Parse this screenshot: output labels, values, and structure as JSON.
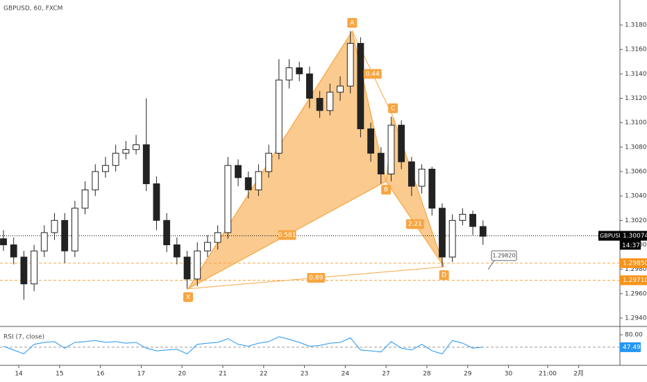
{
  "chart_data": {
    "type": "candlestick",
    "title": "GBPUSD, 60, FXCM",
    "x": [
      -0.375,
      -0.125,
      0.125,
      0.375,
      0.625,
      0.875,
      1.125,
      1.375,
      1.625,
      1.875,
      2.125,
      2.375,
      2.625,
      2.875,
      3.125,
      3.375,
      3.625,
      3.875,
      4.125,
      4.375,
      4.625,
      4.875,
      5.125,
      5.375,
      5.625,
      5.875,
      6.125,
      6.375,
      6.625,
      6.875,
      7.125,
      7.375,
      7.625,
      7.875,
      8.125,
      8.375,
      8.625,
      8.875,
      9.125,
      9.375,
      9.625,
      9.875,
      10.125,
      10.375,
      10.625,
      10.875,
      11.125,
      11.375
    ],
    "open": [
      1.3005,
      1.3,
      1.299,
      1.2968,
      1.2995,
      1.301,
      1.302,
      1.2995,
      1.303,
      1.3045,
      1.306,
      1.3065,
      1.3075,
      1.3078,
      1.3082,
      1.305,
      1.302,
      1.3,
      1.299,
      1.2972,
      1.2995,
      1.3002,
      1.301,
      1.3065,
      1.3055,
      1.3045,
      1.306,
      1.3075,
      1.3135,
      1.3145,
      1.314,
      1.312,
      1.311,
      1.3125,
      1.313,
      1.3165,
      1.3095,
      1.3075,
      1.3058,
      1.3098,
      1.3068,
      1.3048,
      1.3062,
      1.303,
      1.299,
      1.302,
      1.3025,
      1.3015
    ],
    "high": [
      1.3012,
      1.3006,
      1.2995,
      1.3,
      1.3016,
      1.3026,
      1.3026,
      1.3036,
      1.3052,
      1.3066,
      1.3072,
      1.3082,
      1.3085,
      1.309,
      1.312,
      1.3056,
      1.3026,
      1.3006,
      1.2995,
      1.3002,
      1.3008,
      1.3016,
      1.3072,
      1.307,
      1.306,
      1.3066,
      1.3082,
      1.3152,
      1.3152,
      1.315,
      1.3146,
      1.3126,
      1.3132,
      1.3138,
      1.3175,
      1.317,
      1.31,
      1.308,
      1.3105,
      1.3102,
      1.3072,
      1.3066,
      1.3064,
      1.3034,
      1.3025,
      1.303,
      1.3028,
      1.302
    ],
    "low": [
      1.2995,
      1.2984,
      1.2955,
      1.2962,
      1.299,
      1.3004,
      1.2985,
      1.299,
      1.3025,
      1.304,
      1.3055,
      1.306,
      1.307,
      1.3074,
      1.3044,
      1.3012,
      1.2994,
      1.2984,
      1.2964,
      1.2966,
      1.299,
      1.2996,
      1.3005,
      1.3048,
      1.3038,
      1.304,
      1.3055,
      1.307,
      1.3128,
      1.3134,
      1.3112,
      1.3104,
      1.3106,
      1.3118,
      1.3124,
      1.3088,
      1.3068,
      1.305,
      1.3052,
      1.3062,
      1.304,
      1.3042,
      1.3024,
      1.2982,
      1.2986,
      1.3016,
      1.3008,
      1.3
    ],
    "close": [
      1.3,
      1.299,
      1.2968,
      1.2995,
      1.301,
      1.302,
      1.2995,
      1.303,
      1.3045,
      1.306,
      1.3065,
      1.3075,
      1.3078,
      1.3082,
      1.305,
      1.302,
      1.3,
      1.299,
      1.2972,
      1.2995,
      1.3002,
      1.301,
      1.3065,
      1.3055,
      1.3045,
      1.306,
      1.3075,
      1.3135,
      1.3145,
      1.314,
      1.312,
      1.311,
      1.3125,
      1.313,
      1.3165,
      1.3095,
      1.3075,
      1.3058,
      1.3098,
      1.3068,
      1.3048,
      1.3062,
      1.303,
      1.299,
      1.302,
      1.3025,
      1.3015,
      1.3007
    ],
    "xlim": [
      -0.46,
      14.73
    ],
    "xticks": [
      {
        "value": 0,
        "label": "14"
      },
      {
        "value": 1,
        "label": "15"
      },
      {
        "value": 2,
        "label": "16"
      },
      {
        "value": 3,
        "label": "17"
      },
      {
        "value": 4,
        "label": "20"
      },
      {
        "value": 5,
        "label": "21"
      },
      {
        "value": 6,
        "label": "22"
      },
      {
        "value": 7,
        "label": "23"
      },
      {
        "value": 8,
        "label": "24"
      },
      {
        "value": 9,
        "label": "27"
      },
      {
        "value": 10,
        "label": "28"
      },
      {
        "value": 11,
        "label": "29"
      },
      {
        "value": 12,
        "label": "30"
      },
      {
        "value": 12.96,
        "label": "21:00"
      },
      {
        "value": 13.72,
        "label": "2月"
      }
    ],
    "ylim": [
      1.29343,
      1.32005
    ],
    "yticks": [
      {
        "value": 1.318,
        "label": "1.31800"
      },
      {
        "value": 1.316,
        "label": "1.31600"
      },
      {
        "value": 1.314,
        "label": "1.31400"
      },
      {
        "value": 1.312,
        "label": "1.31200"
      },
      {
        "value": 1.31,
        "label": "1.31000"
      },
      {
        "value": 1.308,
        "label": "1.30800"
      },
      {
        "value": 1.306,
        "label": "1.30600"
      },
      {
        "value": 1.304,
        "label": "1.30400"
      },
      {
        "value": 1.302,
        "label": "1.30200"
      },
      {
        "value": 1.3,
        "label": "1.30000"
      },
      {
        "value": 1.298,
        "label": "1.29800"
      },
      {
        "value": 1.296,
        "label": "1.29600"
      },
      {
        "value": 1.294,
        "label": "1.29400"
      }
    ],
    "symbol": "GBPUSD",
    "last_price": {
      "value": 1.30074,
      "label": "1.30074"
    },
    "countdown": "14:37",
    "levels": [
      {
        "value": 1.2985,
        "label": "1.29850"
      },
      {
        "value": 1.2971,
        "label": "1.29710"
      }
    ],
    "callout": {
      "value": 1.2982,
      "label": "1.29820"
    },
    "pattern": {
      "labels": [
        "X",
        "A",
        "B",
        "C",
        "D"
      ],
      "x": [
        4.15,
        8.17,
        9.0,
        9.17,
        10.42
      ],
      "y": [
        1.2964,
        1.3175,
        1.3052,
        1.3105,
        1.2982
      ],
      "ratios": [
        0.581,
        0.44,
        2.21,
        0.89
      ],
      "color": "#f7a642"
    },
    "rsi": {
      "title": "RSI (7, close)",
      "values": [
        50,
        40,
        30,
        55,
        60,
        62,
        45,
        60,
        62,
        65,
        60,
        62,
        58,
        60,
        45,
        38,
        40,
        42,
        30,
        55,
        58,
        60,
        70,
        55,
        50,
        58,
        62,
        75,
        68,
        60,
        50,
        52,
        58,
        60,
        72,
        40,
        38,
        35,
        62,
        45,
        40,
        55,
        38,
        30,
        65,
        58,
        45,
        47.49
      ],
      "color": "#2196f3",
      "ylim": [
        0,
        100
      ],
      "yticks": [
        {
          "value": 80,
          "label": "80.00"
        }
      ],
      "last": {
        "value": 47.49,
        "label": "47.49"
      }
    }
  }
}
